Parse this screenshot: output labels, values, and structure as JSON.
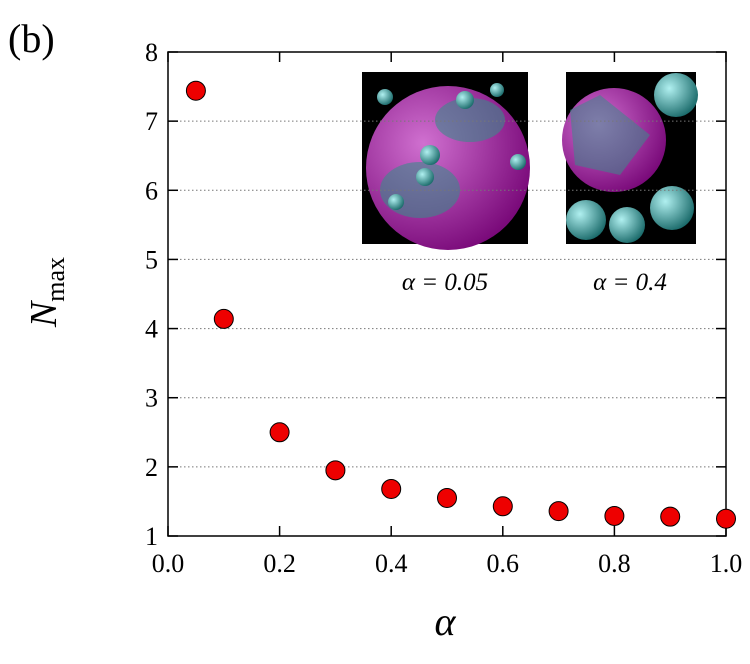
{
  "chart_data": {
    "type": "scatter",
    "panel_label": "(b)",
    "xlabel": "α",
    "ylabel": "N",
    "ylabel_sub": "max",
    "x": [
      0.05,
      0.1,
      0.2,
      0.3,
      0.4,
      0.5,
      0.6,
      0.7,
      0.8,
      0.9,
      1.0
    ],
    "series": [
      {
        "color": "#ee0000",
        "values": [
          7.44,
          4.14,
          2.5,
          1.95,
          1.68,
          1.55,
          1.43,
          1.36,
          1.29,
          1.28,
          1.25
        ]
      }
    ],
    "xlim": [
      0,
      1
    ],
    "ylim": [
      1,
      8
    ],
    "xticks": [
      {
        "value": 0,
        "label": "0.0"
      },
      0.2,
      0.4,
      0.6,
      0.8,
      {
        "value": 1,
        "label": "1.0"
      }
    ],
    "yticks": [
      1,
      2,
      3,
      4,
      5,
      6,
      7,
      8
    ],
    "grid": true,
    "annotations": [
      "α = 0.05",
      "α = 0.4"
    ]
  }
}
